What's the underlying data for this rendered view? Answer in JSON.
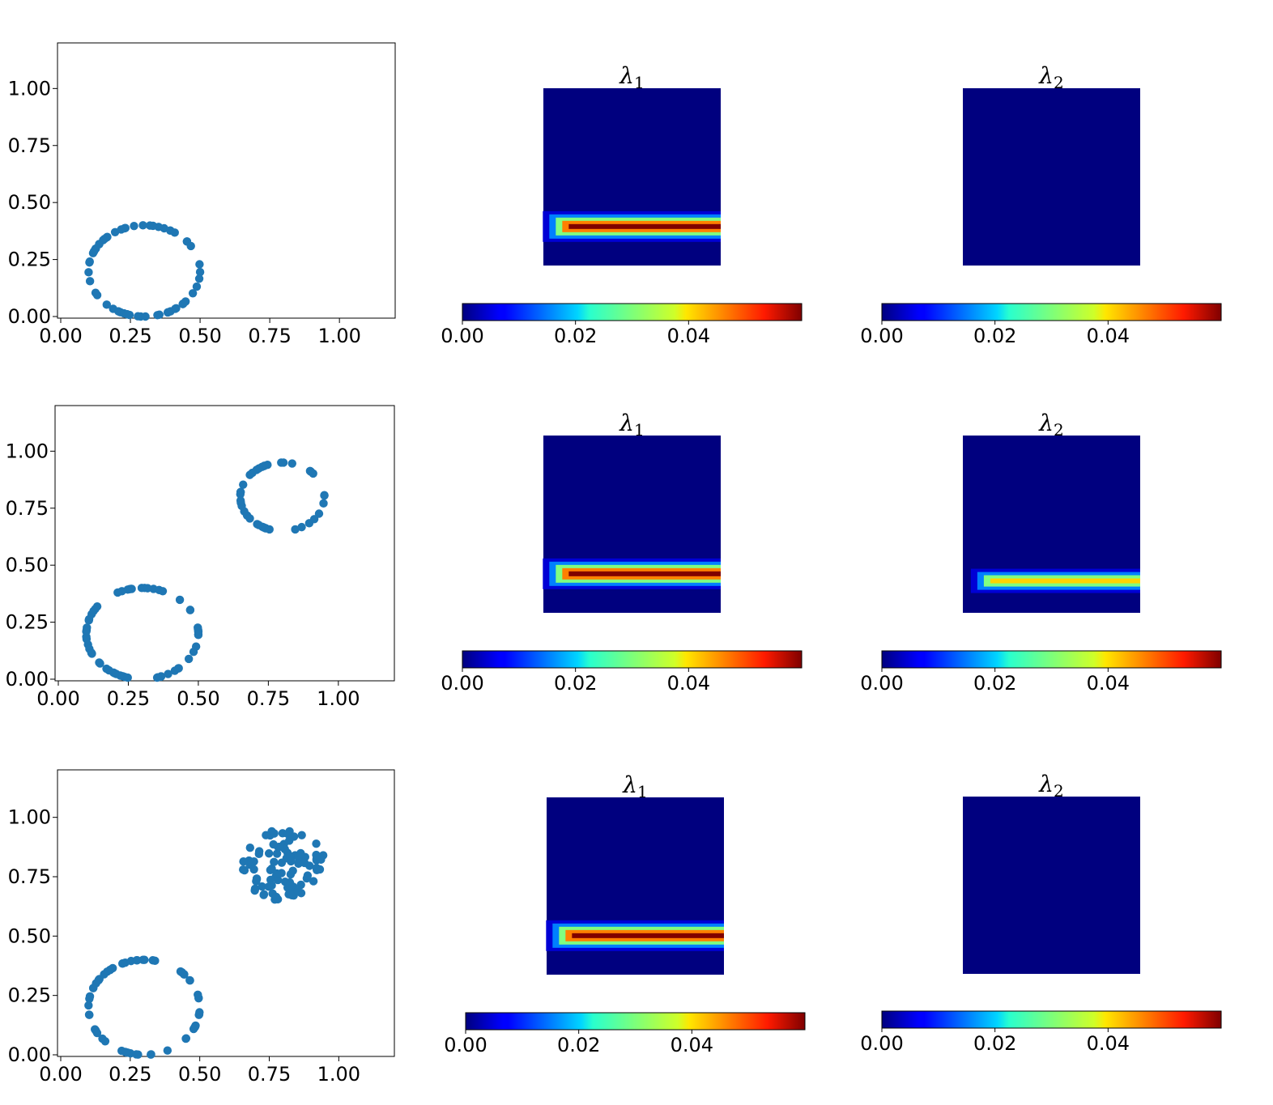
{
  "figure": {
    "description_free": true
  },
  "colors": {
    "point": "#1f77b4",
    "heatmap_background": "#00007f",
    "colormap": "jet"
  },
  "chart_data": [
    {
      "type": "scatter",
      "row": 0,
      "xlim": [
        0,
        1.2
      ],
      "ylim": [
        0,
        1.2
      ],
      "xticks": [
        "0.00",
        "0.25",
        "0.50",
        "0.75",
        "1.00"
      ],
      "yticks": [
        "0.00",
        "0.25",
        "0.50",
        "0.75",
        "1.00"
      ],
      "series": [
        {
          "shape": "ring",
          "center": [
            0.3,
            0.2
          ],
          "radius": [
            0.2,
            0.2
          ],
          "n": 60,
          "x": [],
          "y": []
        }
      ]
    },
    {
      "type": "heatmap",
      "row": 0,
      "title": "λ",
      "title_sub": "1",
      "colorbar": {
        "range": [
          0,
          0.06
        ],
        "ticks": [
          "0.00",
          "0.02",
          "0.04"
        ]
      },
      "grid": 32,
      "band": {
        "x_start": 0.07,
        "y_center": 0.22,
        "layers": [
          0.06,
          0.045,
          0.03,
          0.015,
          0.005
        ]
      }
    },
    {
      "type": "heatmap",
      "row": 0,
      "title": "λ",
      "title_sub": "2",
      "colorbar": {
        "range": [
          0,
          0.06
        ],
        "ticks": [
          "0.00",
          "0.02",
          "0.04"
        ]
      },
      "grid": 32,
      "band": null
    },
    {
      "type": "scatter",
      "row": 1,
      "xlim": [
        0,
        1.2
      ],
      "ylim": [
        0,
        1.2
      ],
      "xticks": [
        "0.00",
        "0.25",
        "0.50",
        "0.75",
        "1.00"
      ],
      "yticks": [
        "0.00",
        "0.25",
        "0.50",
        "0.75",
        "1.00"
      ],
      "series": [
        {
          "shape": "ring",
          "center": [
            0.3,
            0.2
          ],
          "radius": [
            0.2,
            0.2
          ],
          "n": 60,
          "x": [],
          "y": []
        },
        {
          "shape": "ring",
          "center": [
            0.8,
            0.8
          ],
          "radius": [
            0.15,
            0.15
          ],
          "n": 40,
          "x": [],
          "y": []
        }
      ]
    },
    {
      "type": "heatmap",
      "row": 1,
      "title": "λ",
      "title_sub": "1",
      "colorbar": {
        "range": [
          0,
          0.06
        ],
        "ticks": [
          "0.00",
          "0.02",
          "0.04"
        ]
      },
      "grid": 32,
      "band": {
        "x_start": 0.07,
        "y_center": 0.22,
        "layers": [
          0.06,
          0.045,
          0.03,
          0.015,
          0.005
        ]
      }
    },
    {
      "type": "heatmap",
      "row": 1,
      "title": "λ",
      "title_sub": "2",
      "colorbar": {
        "range": [
          0,
          0.06
        ],
        "ticks": [
          "0.00",
          "0.02",
          "0.04"
        ]
      },
      "grid": 32,
      "band": {
        "x_start": 0.1,
        "y_center": 0.18,
        "layers": [
          0.04,
          0.03,
          0.015,
          0.005
        ]
      }
    },
    {
      "type": "scatter",
      "row": 2,
      "xlim": [
        0,
        1.2
      ],
      "ylim": [
        0,
        1.2
      ],
      "xticks": [
        "0.00",
        "0.25",
        "0.50",
        "0.75",
        "1.00"
      ],
      "yticks": [
        "0.00",
        "0.25",
        "0.50",
        "0.75",
        "1.00"
      ],
      "series": [
        {
          "shape": "ring",
          "center": [
            0.3,
            0.2
          ],
          "radius": [
            0.2,
            0.2
          ],
          "n": 60,
          "x": [],
          "y": []
        },
        {
          "shape": "disk",
          "center": [
            0.8,
            0.8
          ],
          "radius": [
            0.15,
            0.15
          ],
          "n": 90,
          "x": [],
          "y": []
        }
      ]
    },
    {
      "type": "heatmap",
      "row": 2,
      "title": "λ",
      "title_sub": "1",
      "colorbar": {
        "range": [
          0,
          0.06
        ],
        "ticks": [
          "0.00",
          "0.02",
          "0.04"
        ]
      },
      "grid": 32,
      "band": {
        "x_start": 0.07,
        "y_center": 0.22,
        "layers": [
          0.06,
          0.045,
          0.03,
          0.015,
          0.005
        ]
      }
    },
    {
      "type": "heatmap",
      "row": 2,
      "title": "λ",
      "title_sub": "2",
      "colorbar": {
        "range": [
          0,
          0.06
        ],
        "ticks": [
          "0.00",
          "0.02",
          "0.04"
        ]
      },
      "grid": 32,
      "band": null
    }
  ]
}
